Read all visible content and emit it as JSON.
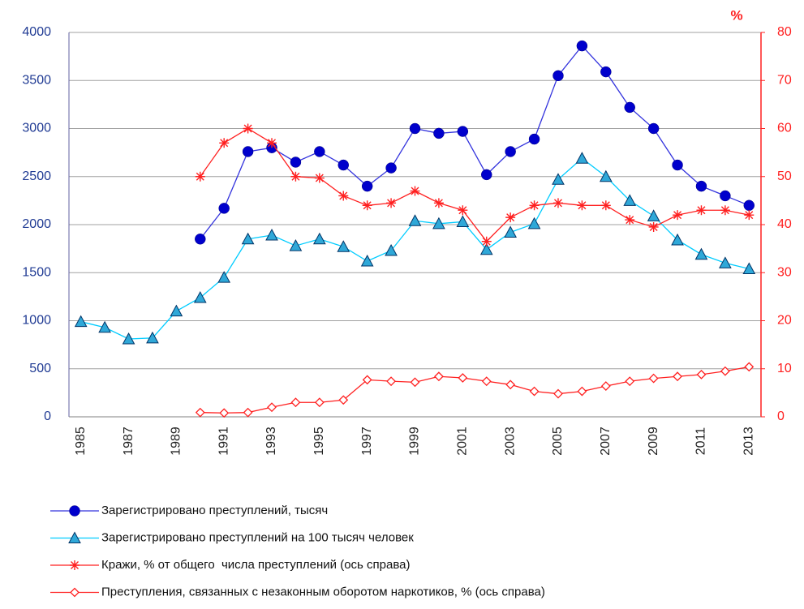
{
  "chart_data": {
    "type": "line",
    "categories": [
      "1985",
      null,
      "1987",
      null,
      "1989",
      null,
      "1991",
      null,
      "1993",
      null,
      "1995",
      null,
      "1997",
      null,
      "1999",
      null,
      "2001",
      null,
      "2003",
      null,
      "2005",
      null,
      "2007",
      null,
      "2009",
      null,
      "2011",
      null,
      "2013"
    ],
    "y2_label": "%",
    "ylim": [
      0,
      4000
    ],
    "yticks": [
      0,
      500,
      1000,
      1500,
      2000,
      2500,
      3000,
      3500,
      4000
    ],
    "y2lim": [
      0,
      80
    ],
    "y2ticks": [
      0,
      10,
      20,
      30,
      40,
      50,
      60,
      70,
      80
    ],
    "grid": true,
    "series": [
      {
        "name": "Зарегистрировано преступлений, тысяч",
        "color": "#0000cc",
        "marker": "circle",
        "values": [
          null,
          null,
          null,
          null,
          null,
          1850,
          2170,
          2760,
          2800,
          2650,
          2760,
          2620,
          2400,
          2590,
          3000,
          2950,
          2970,
          2520,
          2760,
          2890,
          3550,
          3860,
          3590,
          3220,
          3000,
          2620,
          2400,
          2300,
          2200
        ]
      },
      {
        "name": "Зарегистрировано преступлений на 100 тысяч человек",
        "color": "#00ccff",
        "marker": "triangle",
        "values": [
          990,
          930,
          810,
          820,
          1100,
          1240,
          1450,
          1850,
          1890,
          1780,
          1850,
          1770,
          1620,
          1730,
          2040,
          2010,
          2030,
          1740,
          1920,
          2010,
          2470,
          2690,
          2500,
          2250,
          2090,
          1840,
          1690,
          1600,
          1540
        ]
      },
      {
        "name": "Кражи, % от общего  числа преступлений (ось справа)",
        "color": "#ff2020",
        "marker": "star",
        "axis": "y2",
        "values": [
          null,
          null,
          null,
          null,
          null,
          50,
          57,
          60,
          57,
          50,
          49.7,
          46,
          44,
          44.5,
          47,
          44.5,
          43,
          36.5,
          41.5,
          44,
          44.5,
          44,
          44,
          41,
          39.5,
          42,
          43,
          43,
          42
        ]
      },
      {
        "name": "Преступления, связанных с незаконным оборотом наркотиков, % (ось справа)",
        "color": "#ff2020",
        "marker": "diamond",
        "axis": "y2",
        "values": [
          null,
          null,
          null,
          null,
          null,
          0.9,
          0.8,
          0.9,
          2,
          3,
          3,
          3.5,
          7.7,
          7.4,
          7.2,
          8.4,
          8.1,
          7.4,
          6.7,
          5.3,
          4.8,
          5.3,
          6.4,
          7.4,
          8,
          8.4,
          8.8,
          9.5,
          10.4
        ]
      }
    ]
  }
}
